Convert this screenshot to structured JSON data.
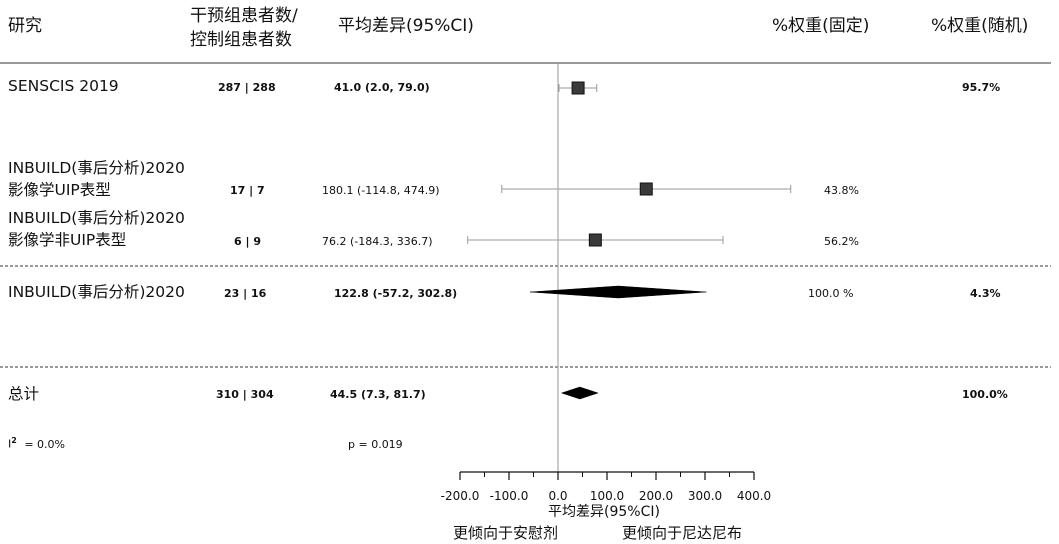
{
  "header": {
    "study": "研究",
    "n_line1": "干预组患者数/",
    "n_line2": "控制组患者数",
    "effect": "平均差异(95%CI)",
    "weight_fixed": "%权重(固定)",
    "weight_random": "%权重(随机)"
  },
  "chart_data": {
    "type": "forest",
    "title": "",
    "xlabel": "平均差异(95%CI)",
    "xlim": [
      -200,
      400
    ],
    "xticks": [
      -200,
      -100,
      0,
      100,
      200,
      300,
      400
    ],
    "xtick_labels": [
      "-200.0",
      "-100.0",
      "0.0",
      "100.0",
      "200.0",
      "300.0",
      "400.0"
    ],
    "left_favor": "更倾向于安慰剂",
    "right_favor": "更倾向于尼达尼布",
    "rows": [
      {
        "id": "senscis",
        "study": "SENSCIS 2019",
        "study2": "",
        "n": "287 | 288",
        "ci_text": "41.0 (2.0, 79.0)",
        "est": 41.0,
        "lo": 2.0,
        "hi": 79.0,
        "w_fixed": "",
        "w_random": "95.7%",
        "marker": "square",
        "bold": true
      },
      {
        "id": "inb-uip",
        "study": "INBUILD(事后分析)2020",
        "study2": "影像学UIP表型",
        "n": "17 | 7",
        "ci_text": "180.1 (-114.8, 474.9)",
        "est": 180.1,
        "lo": -114.8,
        "hi": 474.9,
        "w_fixed": "43.8%",
        "w_random": "",
        "marker": "square",
        "bold": false
      },
      {
        "id": "inb-nonuip",
        "study": "INBUILD(事后分析)2020",
        "study2": "影像学非UIP表型",
        "n": "6 | 9",
        "ci_text": "76.2 (-184.3, 336.7)",
        "est": 76.2,
        "lo": -184.3,
        "hi": 336.7,
        "w_fixed": "56.2%",
        "w_random": "",
        "marker": "square",
        "bold": false
      },
      {
        "id": "inb-pooled",
        "study": "INBUILD(事后分析)2020",
        "study2": "",
        "n": "23 | 16",
        "ci_text": "122.8 (-57.2, 302.8)",
        "est": 122.8,
        "lo": -57.2,
        "hi": 302.8,
        "w_fixed": "100.0 %",
        "w_random": "4.3%",
        "marker": "diamond",
        "bold": true
      },
      {
        "id": "total",
        "study": "总计",
        "study2": "",
        "n": "310 | 304",
        "ci_text": "44.5 (7.3, 81.7)",
        "est": 44.5,
        "lo": 7.3,
        "hi": 81.7,
        "w_fixed": "",
        "w_random": "100.0%",
        "marker": "diamond",
        "bold": true
      }
    ],
    "heterogeneity": {
      "i2_label": "I",
      "i2_sup": "2",
      "i2_value": "= 0.0%"
    },
    "p_value": "p = 0.019"
  }
}
